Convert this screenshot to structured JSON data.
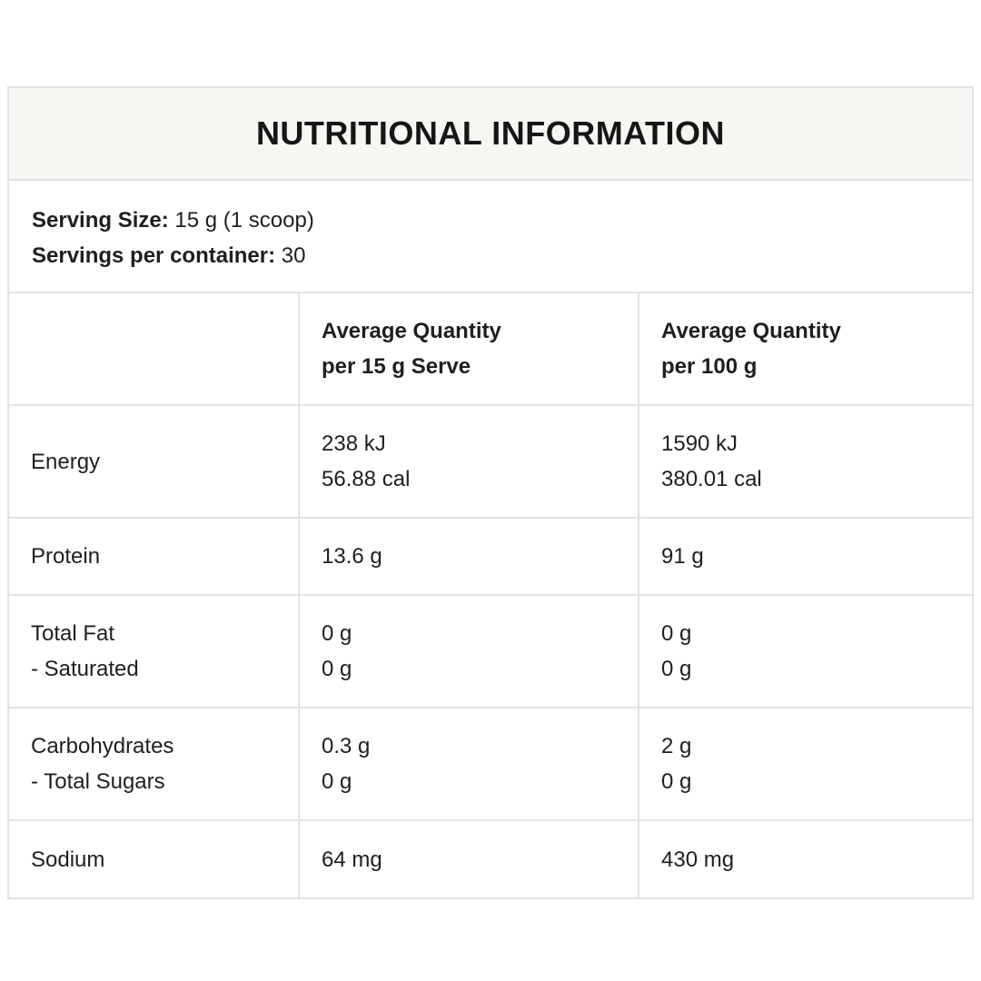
{
  "title": "NUTRITIONAL INFORMATION",
  "serving": {
    "size_label": "Serving Size:",
    "size_value": " 15 g (1 scoop)",
    "per_container_label": "Servings per container:",
    "per_container_value": " 30"
  },
  "columns": {
    "per_serve": [
      "Average Quantity",
      "per 15 g Serve"
    ],
    "per_100g": [
      "Average Quantity",
      "per 100 g"
    ]
  },
  "rows": [
    {
      "name": [
        "Energy"
      ],
      "per_serve": [
        "238 kJ",
        "56.88 cal"
      ],
      "per_100g": [
        "1590 kJ",
        "380.01 cal"
      ]
    },
    {
      "name": [
        "Protein"
      ],
      "per_serve": [
        "13.6 g"
      ],
      "per_100g": [
        "91 g"
      ]
    },
    {
      "name": [
        "Total Fat",
        "- Saturated"
      ],
      "per_serve": [
        "0 g",
        "0 g"
      ],
      "per_100g": [
        "0 g",
        "0 g"
      ]
    },
    {
      "name": [
        "Carbohydrates",
        "- Total Sugars"
      ],
      "per_serve": [
        "0.3 g",
        "0 g"
      ],
      "per_100g": [
        "2 g",
        "0 g"
      ]
    },
    {
      "name": [
        "Sodium"
      ],
      "per_serve": [
        "64 mg"
      ],
      "per_100g": [
        "430 mg"
      ]
    }
  ]
}
